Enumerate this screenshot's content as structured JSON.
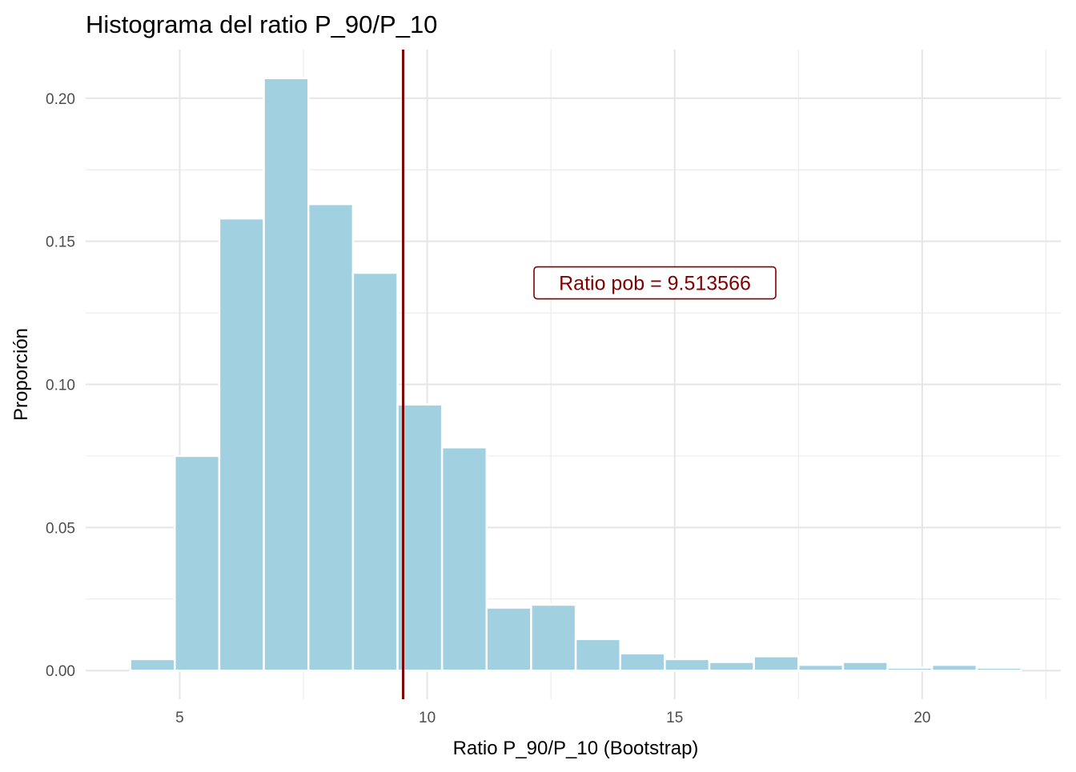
{
  "chart_data": {
    "type": "bar",
    "title": "Histograma del ratio P_90/P_10",
    "xlabel": "Ratio P_90/P_10 (Bootstrap)",
    "ylabel": "Proporción",
    "xlim": [
      3.1,
      22.8
    ],
    "ylim": [
      -0.01,
      0.217
    ],
    "x_ticks": [
      5,
      10,
      15,
      20
    ],
    "y_ticks": [
      0.0,
      0.05,
      0.1,
      0.15,
      0.2
    ],
    "x_tick_labels": [
      "5",
      "10",
      "15",
      "20"
    ],
    "y_tick_labels": [
      "0.00",
      "0.05",
      "0.10",
      "0.15",
      "0.20"
    ],
    "grid": true,
    "bin_width": 0.9,
    "bins": [
      {
        "x_start": 4.0,
        "value": 0.004
      },
      {
        "x_start": 4.9,
        "value": 0.075
      },
      {
        "x_start": 5.8,
        "value": 0.158
      },
      {
        "x_start": 6.7,
        "value": 0.207
      },
      {
        "x_start": 7.6,
        "value": 0.163
      },
      {
        "x_start": 8.5,
        "value": 0.139
      },
      {
        "x_start": 9.4,
        "value": 0.093
      },
      {
        "x_start": 10.3,
        "value": 0.078
      },
      {
        "x_start": 11.2,
        "value": 0.022
      },
      {
        "x_start": 12.1,
        "value": 0.023
      },
      {
        "x_start": 13.0,
        "value": 0.011
      },
      {
        "x_start": 13.9,
        "value": 0.006
      },
      {
        "x_start": 14.8,
        "value": 0.004
      },
      {
        "x_start": 15.7,
        "value": 0.003
      },
      {
        "x_start": 16.6,
        "value": 0.005
      },
      {
        "x_start": 17.5,
        "value": 0.002
      },
      {
        "x_start": 18.4,
        "value": 0.003
      },
      {
        "x_start": 19.3,
        "value": 0.001
      },
      {
        "x_start": 20.2,
        "value": 0.002
      },
      {
        "x_start": 21.1,
        "value": 0.001
      }
    ],
    "reference_line": {
      "x": 9.513566
    },
    "annotation": {
      "text": "Ratio pob = 9.513566",
      "x": 14.6,
      "y": 0.1355
    },
    "colors": {
      "bar": "#a1d0e1",
      "reference": "#800000",
      "grid": "#e5e5e5"
    }
  }
}
